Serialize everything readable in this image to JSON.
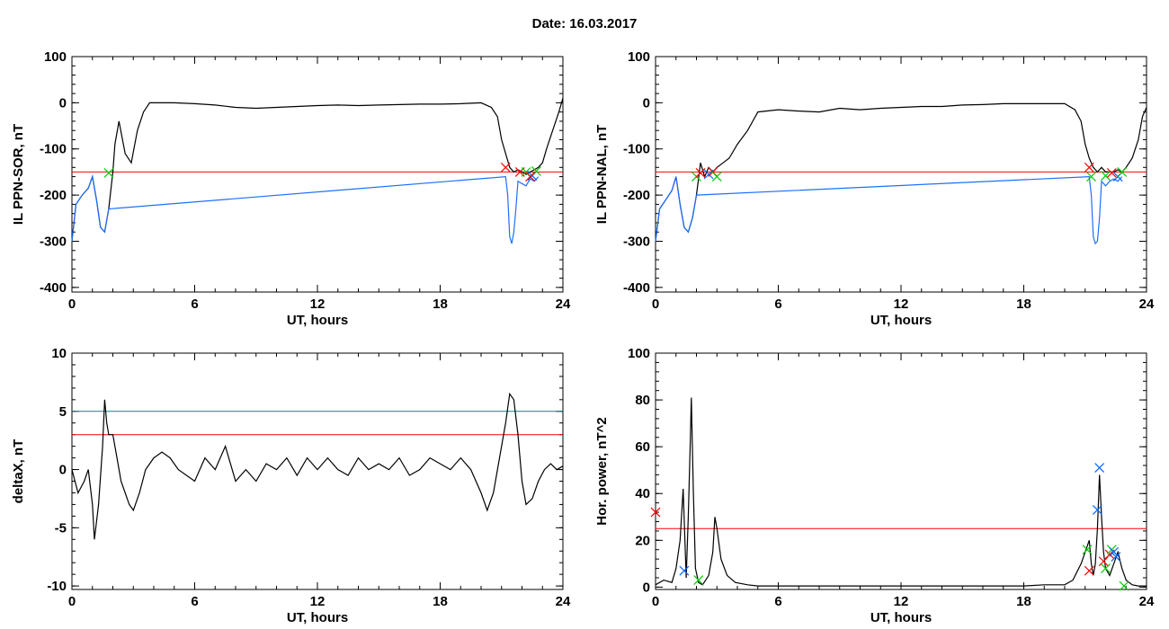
{
  "header": {
    "date_text": "Date:  16.03.2017"
  },
  "chart_data": [
    {
      "type": "line",
      "xlabel": "UT, hours",
      "ylabel": "IL PPN-SOR, nT",
      "xlim": [
        0,
        24
      ],
      "ylim": [
        -410,
        100
      ],
      "xticks": [
        0,
        6,
        12,
        18,
        24
      ],
      "yticks": [
        -400,
        -300,
        -200,
        -100,
        0,
        100
      ],
      "threshold": -150,
      "threshold_color": "#ff0000",
      "series": [
        {
          "color": "#000000",
          "x": [
            0,
            0.2,
            0.5,
            0.8,
            1.0,
            1.2,
            1.4,
            1.6,
            1.8,
            2.0,
            2.1,
            2.3,
            2.6,
            2.9,
            3.2,
            3.5,
            3.8,
            4.1,
            4.5,
            5,
            6,
            7,
            8,
            9,
            10,
            11,
            12,
            13,
            14,
            15,
            16,
            17,
            18,
            19,
            20,
            20.5,
            20.8,
            21.0,
            21.2,
            21.4,
            21.6,
            21.8,
            22.0,
            22.2,
            22.4,
            22.6,
            22.8,
            23.0,
            23.2,
            23.5,
            23.8,
            24
          ],
          "y": [
            -300,
            -220,
            -200,
            -185,
            -160,
            -210,
            -270,
            -280,
            -230,
            -150,
            -90,
            -40,
            -110,
            -130,
            -60,
            -20,
            0,
            0,
            0,
            0,
            -2,
            -5,
            -10,
            -12,
            -10,
            -8,
            -6,
            -5,
            -6,
            -5,
            -4,
            -3,
            -3,
            -2,
            0,
            -10,
            -30,
            -80,
            -110,
            -140,
            -150,
            -145,
            -150,
            -155,
            -150,
            -145,
            -140,
            -130,
            -100,
            -60,
            -20,
            10
          ]
        },
        {
          "color": "#1f6fff",
          "x": [
            0,
            0.2,
            0.5,
            0.8,
            1.0,
            1.2,
            1.4,
            1.6,
            1.8,
            21.2,
            21.3,
            21.4,
            21.5,
            21.6,
            21.7,
            21.8,
            22.0,
            22.2,
            22.4,
            22.6,
            22.8
          ],
          "y": [
            -300,
            -220,
            -200,
            -185,
            -160,
            -210,
            -270,
            -280,
            -230,
            -160,
            -200,
            -290,
            -305,
            -280,
            -230,
            -170,
            -175,
            -180,
            -165,
            -170,
            -160
          ]
        }
      ],
      "markers": [
        {
          "x": 1.8,
          "y": -152,
          "color": "#00cc00"
        },
        {
          "x": 21.2,
          "y": -140,
          "color": "#ff0000"
        },
        {
          "x": 21.9,
          "y": -150,
          "color": "#ff0000"
        },
        {
          "x": 22.2,
          "y": -150,
          "color": "#00cc00"
        },
        {
          "x": 22.5,
          "y": -158,
          "color": "#0066ff"
        },
        {
          "x": 22.7,
          "y": -148,
          "color": "#00cc00"
        },
        {
          "x": 22.4,
          "y": -160,
          "color": "#ff0000"
        }
      ]
    },
    {
      "type": "line",
      "xlabel": "UT, hours",
      "ylabel": "IL PPN-NAL, nT",
      "xlim": [
        0,
        24
      ],
      "ylim": [
        -410,
        100
      ],
      "xticks": [
        0,
        6,
        12,
        18,
        24
      ],
      "yticks": [
        -400,
        -300,
        -200,
        -100,
        0,
        100
      ],
      "threshold": -150,
      "threshold_color": "#ff0000",
      "series": [
        {
          "color": "#000000",
          "x": [
            0,
            0.2,
            0.5,
            0.8,
            1.0,
            1.2,
            1.4,
            1.6,
            1.8,
            2.0,
            2.2,
            2.4,
            2.6,
            2.8,
            3.0,
            3.3,
            3.6,
            4.0,
            4.5,
            5,
            6,
            7,
            8,
            9,
            10,
            11,
            12,
            13,
            14,
            15,
            16,
            17,
            18,
            19,
            20,
            20.5,
            20.8,
            21.0,
            21.2,
            21.4,
            21.6,
            21.8,
            22.0,
            22.2,
            22.4,
            22.6,
            22.8,
            23.0,
            23.3,
            23.6,
            23.8,
            24
          ],
          "y": [
            -300,
            -230,
            -210,
            -190,
            -160,
            -220,
            -270,
            -280,
            -250,
            -200,
            -130,
            -160,
            -140,
            -150,
            -140,
            -130,
            -120,
            -90,
            -60,
            -20,
            -15,
            -18,
            -20,
            -12,
            -15,
            -12,
            -10,
            -8,
            -8,
            -5,
            -4,
            -2,
            -2,
            -2,
            -2,
            -15,
            -40,
            -90,
            -120,
            -140,
            -150,
            -140,
            -150,
            -150,
            -150,
            -145,
            -150,
            -140,
            -120,
            -80,
            -30,
            -10
          ]
        },
        {
          "color": "#1f6fff",
          "x": [
            0,
            0.2,
            0.5,
            0.8,
            1.0,
            1.2,
            1.4,
            1.6,
            1.8,
            2.0,
            21.2,
            21.3,
            21.4,
            21.5,
            21.6,
            21.7,
            21.8,
            22.0,
            22.2,
            22.4,
            22.6,
            22.8
          ],
          "y": [
            -300,
            -230,
            -210,
            -190,
            -160,
            -220,
            -270,
            -280,
            -250,
            -200,
            -160,
            -200,
            -290,
            -305,
            -300,
            -250,
            -170,
            -180,
            -170,
            -165,
            -170,
            -160
          ]
        }
      ],
      "markers": [
        {
          "x": 2.0,
          "y": -160,
          "color": "#00cc00"
        },
        {
          "x": 2.2,
          "y": -152,
          "color": "#ff0000"
        },
        {
          "x": 2.6,
          "y": -155,
          "color": "#0066ff"
        },
        {
          "x": 2.8,
          "y": -150,
          "color": "#ff0000"
        },
        {
          "x": 3.0,
          "y": -160,
          "color": "#00cc00"
        },
        {
          "x": 21.2,
          "y": -140,
          "color": "#ff0000"
        },
        {
          "x": 21.3,
          "y": -160,
          "color": "#00cc00"
        },
        {
          "x": 22.0,
          "y": -158,
          "color": "#00cc00"
        },
        {
          "x": 22.3,
          "y": -152,
          "color": "#ff0000"
        },
        {
          "x": 22.6,
          "y": -160,
          "color": "#0066ff"
        },
        {
          "x": 22.8,
          "y": -150,
          "color": "#00cc00"
        }
      ]
    },
    {
      "type": "line",
      "xlabel": "UT, hours",
      "ylabel": "deltaX, nT",
      "xlim": [
        0,
        24
      ],
      "ylim": [
        -10.3,
        10
      ],
      "xticks": [
        0,
        6,
        12,
        18,
        24
      ],
      "yticks": [
        -10,
        -5,
        0,
        5,
        10
      ],
      "thresholds": [
        {
          "value": 5,
          "color": "#008b8b"
        },
        {
          "value": 3,
          "color": "#ff0000"
        }
      ],
      "series": [
        {
          "color": "#000000",
          "x": [
            0,
            0.3,
            0.6,
            0.8,
            1.0,
            1.1,
            1.3,
            1.5,
            1.6,
            1.7,
            1.8,
            2.0,
            2.2,
            2.4,
            2.6,
            2.8,
            3.0,
            3.3,
            3.6,
            4.0,
            4.4,
            4.8,
            5.2,
            5.6,
            6,
            6.5,
            7,
            7.5,
            8,
            8.5,
            9,
            9.5,
            10,
            10.5,
            11,
            11.5,
            12,
            12.5,
            13,
            13.5,
            14,
            14.5,
            15,
            15.5,
            16,
            16.5,
            17,
            17.5,
            18,
            18.5,
            19,
            19.5,
            20,
            20.3,
            20.6,
            20.9,
            21.2,
            21.4,
            21.6,
            21.8,
            22.0,
            22.2,
            22.5,
            22.8,
            23.1,
            23.4,
            23.7,
            24
          ],
          "y": [
            0,
            -2,
            -1,
            0,
            -3,
            -6,
            -3,
            2,
            6,
            4,
            3,
            3,
            1,
            -1,
            -2,
            -3,
            -3.5,
            -2,
            0,
            1,
            1.5,
            1,
            0,
            -0.5,
            -1,
            1,
            0,
            2,
            -1,
            0,
            -1,
            0.5,
            0,
            1,
            -0.5,
            1,
            0,
            1,
            0,
            -0.5,
            1,
            0,
            0.5,
            0,
            1,
            -0.5,
            0,
            1,
            0.5,
            0,
            1,
            0,
            -2,
            -3.5,
            -2,
            1,
            4,
            6.5,
            6,
            3,
            -1,
            -3,
            -2.5,
            -1,
            0,
            0.5,
            0,
            0.3
          ]
        }
      ]
    },
    {
      "type": "line",
      "xlabel": "UT, hours",
      "ylabel": "Hor. power, nT^2",
      "xlim": [
        0,
        24
      ],
      "ylim": [
        -1,
        100
      ],
      "xticks": [
        0,
        6,
        12,
        18,
        24
      ],
      "yticks": [
        0,
        20,
        40,
        60,
        80,
        100
      ],
      "threshold": 25,
      "threshold_color": "#ff0000",
      "series": [
        {
          "color": "#000000",
          "x": [
            0,
            0.4,
            0.8,
            1.0,
            1.2,
            1.35,
            1.5,
            1.6,
            1.7,
            1.75,
            1.85,
            1.95,
            2.1,
            2.3,
            2.6,
            2.8,
            2.9,
            3.0,
            3.2,
            3.5,
            3.9,
            4.5,
            5,
            6,
            7,
            8,
            9,
            10,
            11,
            12,
            13,
            14,
            15,
            16,
            17,
            18,
            19,
            20,
            20.4,
            20.8,
            21.0,
            21.2,
            21.3,
            21.4,
            21.5,
            21.6,
            21.7,
            21.8,
            21.9,
            22.0,
            22.2,
            22.4,
            22.6,
            22.8,
            23.0,
            23.3,
            23.6,
            24
          ],
          "y": [
            1,
            3,
            2,
            8,
            20,
            42,
            4,
            30,
            63,
            81,
            40,
            8,
            2,
            1,
            5,
            15,
            30,
            25,
            12,
            5,
            2,
            1,
            0.5,
            0.5,
            0.5,
            0.5,
            0.5,
            0.5,
            0.5,
            0.5,
            0.5,
            0.5,
            0.5,
            0.5,
            0.5,
            0.5,
            1,
            1,
            3,
            10,
            15,
            20,
            10,
            5,
            10,
            25,
            48,
            30,
            15,
            8,
            5,
            10,
            15,
            8,
            3,
            1,
            0.5,
            0.5
          ]
        }
      ],
      "markers": [
        {
          "x": 0,
          "y": 32,
          "color": "#ff0000"
        },
        {
          "x": 1.4,
          "y": 7,
          "color": "#0066ff"
        },
        {
          "x": 2.1,
          "y": 3,
          "color": "#00cc00"
        },
        {
          "x": 21.1,
          "y": 16,
          "color": "#00cc00"
        },
        {
          "x": 21.2,
          "y": 7,
          "color": "#ff0000"
        },
        {
          "x": 21.6,
          "y": 33,
          "color": "#0066ff"
        },
        {
          "x": 21.7,
          "y": 51,
          "color": "#0066ff"
        },
        {
          "x": 21.9,
          "y": 11,
          "color": "#ff0000"
        },
        {
          "x": 22.0,
          "y": 8,
          "color": "#00cc00"
        },
        {
          "x": 22.2,
          "y": 14,
          "color": "#ff0000"
        },
        {
          "x": 22.3,
          "y": 16,
          "color": "#00cc00"
        },
        {
          "x": 22.4,
          "y": 15,
          "color": "#0066ff"
        },
        {
          "x": 22.5,
          "y": 13,
          "color": "#0066ff"
        },
        {
          "x": 22.9,
          "y": 0.5,
          "color": "#00cc00"
        }
      ]
    }
  ]
}
